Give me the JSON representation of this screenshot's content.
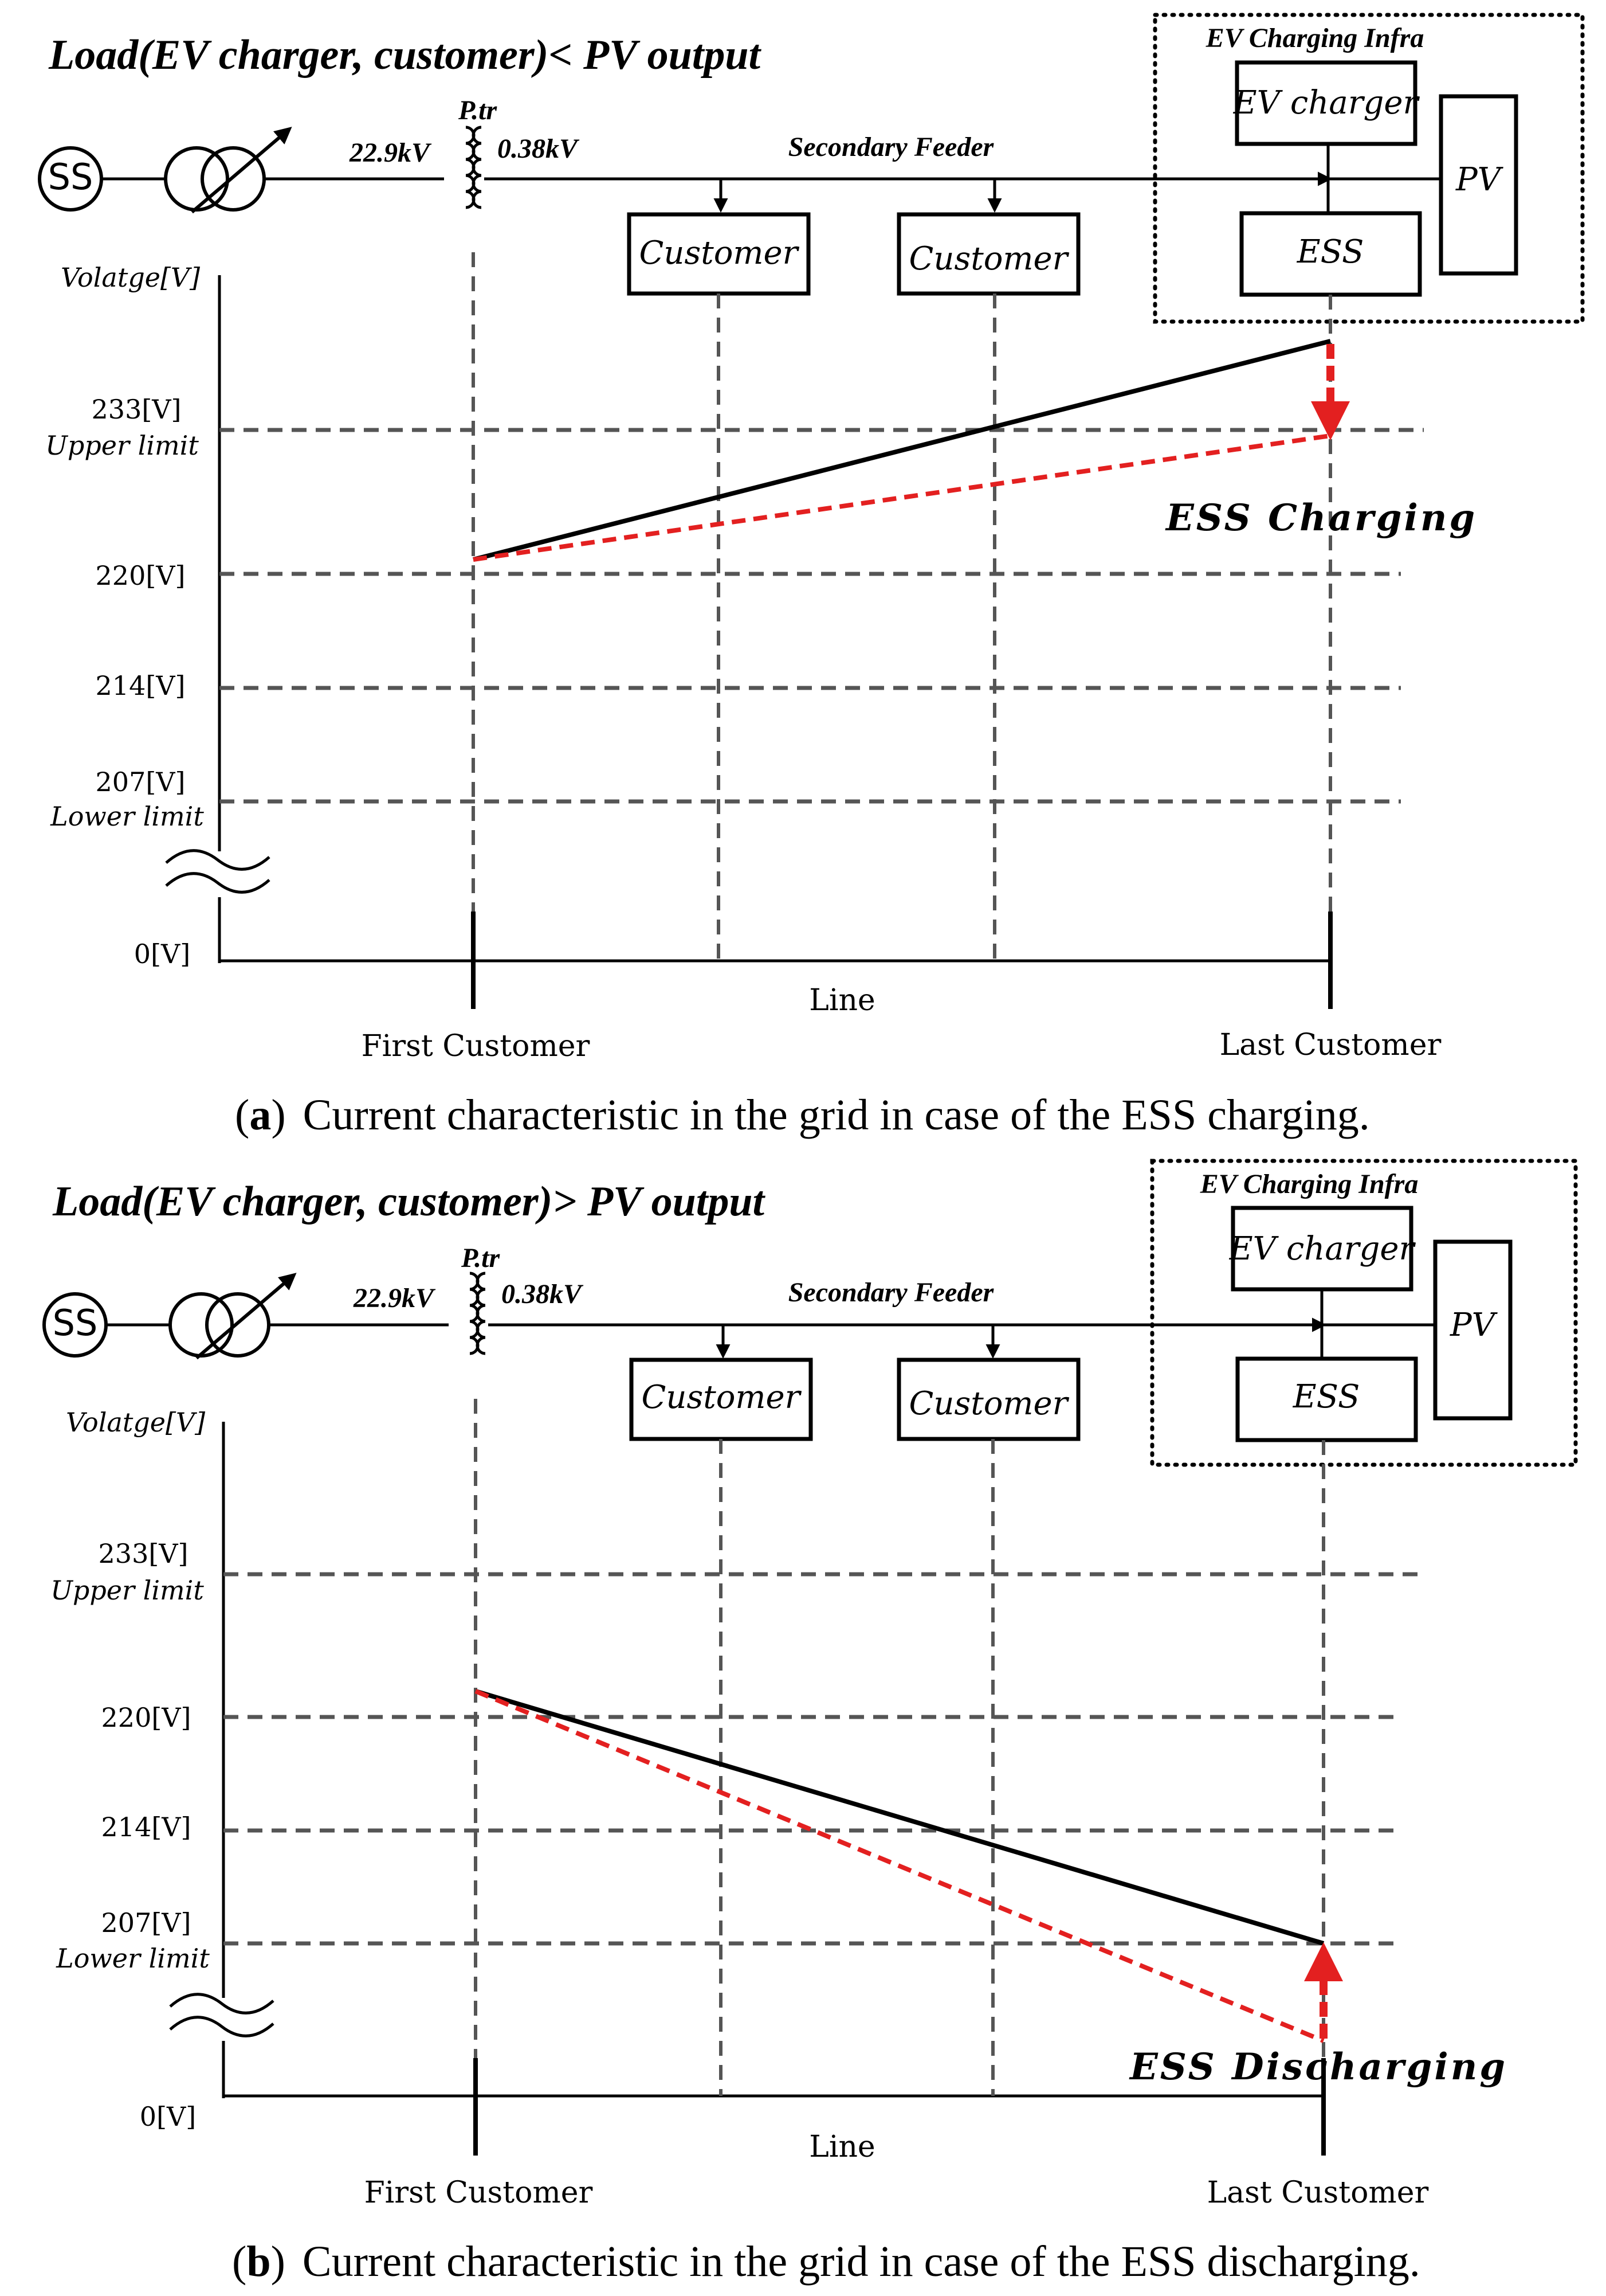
{
  "panels": [
    {
      "id": "a",
      "heading": "Load(EV charger, customer)< PV output",
      "infra_title": "EV Charging Infra",
      "ev_charger": "EV charger",
      "pv": "PV",
      "ess": "ESS",
      "customer_1": "Customer",
      "customer_2": "Customer",
      "substation": "SS",
      "hv_voltage": "22.9kV",
      "lv_voltage": "0.38kV",
      "ptr": "P.tr",
      "feeder": "Secondary Feeder",
      "y_axis_title": "Volatge[V]",
      "y_233": "233[V]",
      "y_upper": "Upper limit",
      "y_220": "220[V]",
      "y_214": "214[V]",
      "y_207": "207[V]",
      "y_lower": "Lower limit",
      "y_0": "0[V]",
      "x_axis_title": "Line",
      "x_first": "First Customer",
      "x_last": "Last Customer",
      "ess_label": "ESS Charging",
      "caption_letter": "a",
      "caption_text": "Current characteristic in the grid in case of the ESS charging."
    },
    {
      "id": "b",
      "heading": "Load(EV charger, customer)> PV output",
      "infra_title": "EV Charging Infra",
      "ev_charger": "EV charger",
      "pv": "PV",
      "ess": "ESS",
      "customer_1": "Customer",
      "customer_2": "Customer",
      "substation": "SS",
      "hv_voltage": "22.9kV",
      "lv_voltage": "0.38kV",
      "ptr": "P.tr",
      "feeder": "Secondary Feeder",
      "y_axis_title": "Volatge[V]",
      "y_233": "233[V]",
      "y_upper": "Upper limit",
      "y_220": "220[V]",
      "y_214": "214[V]",
      "y_207": "207[V]",
      "y_lower": "Lower limit",
      "y_0": "0[V]",
      "x_axis_title": "Line",
      "x_first": "First Customer",
      "x_last": "Last Customer",
      "ess_label": "ESS Discharging",
      "caption_letter": "b",
      "caption_text": "Current characteristic in the grid in case of the ESS discharging."
    }
  ],
  "colors": {
    "without_ess": "#000000",
    "with_ess": "#e32020",
    "grid": "#555555"
  }
}
